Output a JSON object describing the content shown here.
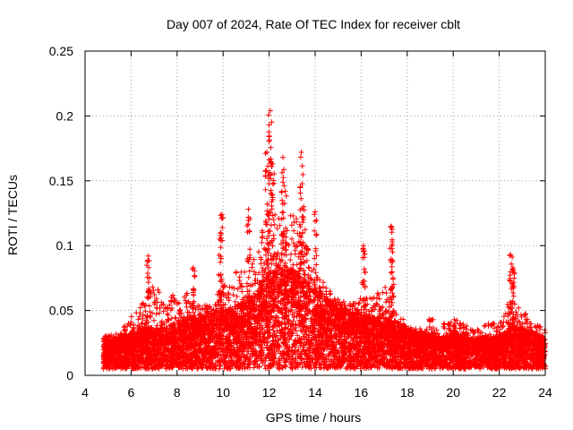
{
  "chart_data": {
    "type": "scatter",
    "title": "Day 007 of 2024, Rate Of TEC Index for receiver cblt",
    "xlabel": "GPS time / hours",
    "ylabel": "ROTI / TECUs",
    "xlim": [
      4,
      24
    ],
    "ylim": [
      0,
      0.25
    ],
    "xticks": [
      4,
      6,
      8,
      10,
      12,
      14,
      16,
      18,
      20,
      22,
      24
    ],
    "xtick_labels": [
      "4",
      "6",
      "8",
      "10",
      "12",
      "14",
      "16",
      "18",
      "20",
      "22",
      "24"
    ],
    "yticks": [
      0,
      0.05,
      0.1,
      0.15,
      0.2,
      0.25
    ],
    "ytick_labels": [
      "0",
      "0.05",
      "0.1",
      "0.15",
      "0.2",
      "0.25"
    ],
    "grid": true,
    "marker": "+",
    "color": "#ff0000",
    "x_data_range": [
      4.8,
      24
    ],
    "envelope": {
      "hours": [
        4.8,
        5.5,
        6.0,
        6.5,
        7.0,
        7.5,
        8.0,
        8.5,
        9.0,
        9.5,
        10.0,
        10.5,
        11.0,
        11.5,
        12.0,
        12.5,
        13.0,
        13.5,
        14.0,
        14.5,
        15.0,
        15.5,
        16.0,
        16.5,
        17.0,
        17.5,
        18.0,
        18.5,
        19.0,
        19.5,
        20.0,
        20.5,
        21.0,
        21.5,
        22.0,
        22.5,
        23.0,
        23.5,
        24.0
      ],
      "typical": [
        0.018,
        0.02,
        0.022,
        0.025,
        0.024,
        0.025,
        0.027,
        0.03,
        0.03,
        0.032,
        0.035,
        0.036,
        0.038,
        0.045,
        0.055,
        0.058,
        0.055,
        0.05,
        0.045,
        0.04,
        0.036,
        0.033,
        0.032,
        0.03,
        0.03,
        0.028,
        0.025,
        0.022,
        0.022,
        0.02,
        0.022,
        0.02,
        0.019,
        0.02,
        0.02,
        0.025,
        0.025,
        0.022,
        0.02
      ],
      "upper": [
        0.03,
        0.035,
        0.045,
        0.06,
        0.07,
        0.065,
        0.06,
        0.065,
        0.055,
        0.055,
        0.07,
        0.08,
        0.08,
        0.1,
        0.13,
        0.12,
        0.13,
        0.11,
        0.08,
        0.07,
        0.06,
        0.055,
        0.06,
        0.06,
        0.07,
        0.05,
        0.04,
        0.035,
        0.045,
        0.04,
        0.045,
        0.04,
        0.035,
        0.04,
        0.04,
        0.06,
        0.05,
        0.045,
        0.035
      ]
    },
    "peaks": [
      {
        "x": 6.75,
        "y": 0.092
      },
      {
        "x": 8.7,
        "y": 0.083
      },
      {
        "x": 9.85,
        "y": 0.105
      },
      {
        "x": 9.95,
        "y": 0.124
      },
      {
        "x": 11.1,
        "y": 0.128
      },
      {
        "x": 11.9,
        "y": 0.172
      },
      {
        "x": 12.0,
        "y": 0.193
      },
      {
        "x": 12.05,
        "y": 0.204
      },
      {
        "x": 12.15,
        "y": 0.163
      },
      {
        "x": 12.6,
        "y": 0.168
      },
      {
        "x": 12.7,
        "y": 0.142
      },
      {
        "x": 13.4,
        "y": 0.172
      },
      {
        "x": 13.5,
        "y": 0.13
      },
      {
        "x": 14.0,
        "y": 0.126
      },
      {
        "x": 16.1,
        "y": 0.1
      },
      {
        "x": 17.3,
        "y": 0.115
      },
      {
        "x": 17.35,
        "y": 0.103
      },
      {
        "x": 22.5,
        "y": 0.093
      },
      {
        "x": 22.6,
        "y": 0.083
      }
    ]
  }
}
